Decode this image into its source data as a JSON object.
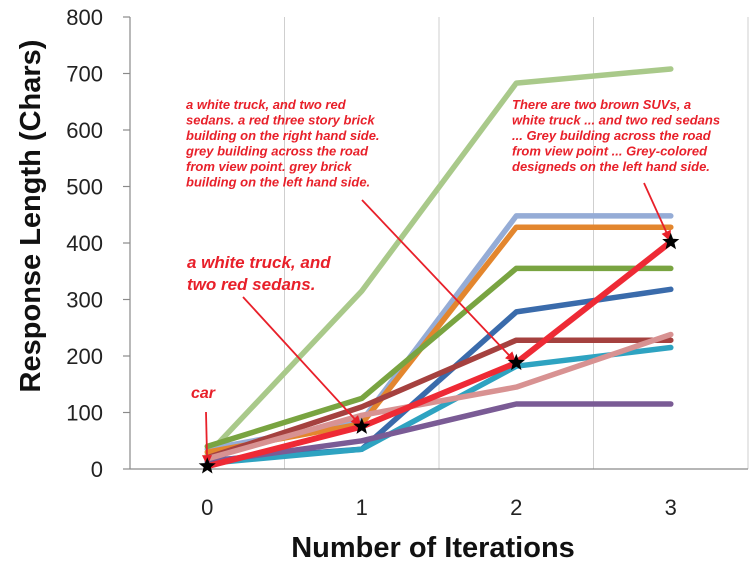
{
  "chart_data": {
    "type": "line",
    "title": "",
    "xlabel": "Number of Iterations",
    "ylabel": "Response Length (Chars)",
    "x": [
      0,
      1,
      2,
      3
    ],
    "ylim": [
      0,
      800
    ],
    "yticks": [
      0,
      100,
      200,
      300,
      400,
      500,
      600,
      700,
      800
    ],
    "grid": "vertical",
    "legend": "none",
    "series": [
      {
        "color": "#a9c98a",
        "values": [
          25,
          315,
          683,
          708
        ]
      },
      {
        "color": "#95acd6",
        "values": [
          35,
          85,
          448,
          448
        ]
      },
      {
        "color": "#e3862e",
        "values": [
          30,
          80,
          428,
          428
        ]
      },
      {
        "color": "#79a441",
        "values": [
          40,
          125,
          355,
          355
        ]
      },
      {
        "color": "#3a6bab",
        "values": [
          15,
          35,
          278,
          318
        ]
      },
      {
        "color": "#a5413f",
        "values": [
          20,
          110,
          228,
          228
        ]
      },
      {
        "color": "#2ea3c1",
        "values": [
          10,
          35,
          182,
          215
        ]
      },
      {
        "color": "#7a5b95",
        "values": [
          12,
          50,
          115,
          115
        ]
      },
      {
        "color": "#d89292",
        "values": [
          18,
          95,
          145,
          238
        ]
      },
      {
        "color": "#ee2a35",
        "values": [
          5,
          75,
          188,
          402
        ],
        "highlight": true
      }
    ],
    "markers": [
      {
        "x": 0,
        "y": 5
      },
      {
        "x": 1,
        "y": 75
      },
      {
        "x": 2,
        "y": 188
      },
      {
        "x": 3,
        "y": 402
      }
    ],
    "annotations": [
      {
        "id": "car",
        "lines": [
          "car"
        ],
        "target": 0
      },
      {
        "id": "iter1",
        "lines": [
          "a white truck, and",
          "two red sedans."
        ],
        "target": 1
      },
      {
        "id": "iter2",
        "lines": [
          "a white truck, and two red",
          "sedans. a red three story brick",
          "building on the right hand side.",
          "grey building across the road",
          "from view point. grey brick",
          "building on the left hand side."
        ],
        "target": 2
      },
      {
        "id": "iter3",
        "lines": [
          "There are two brown SUVs, a",
          "white truck ... and two red sedans",
          "... Grey building across the road",
          "from view point ... Grey-colored",
          "designeds on the left hand side."
        ],
        "target": 3
      }
    ]
  }
}
